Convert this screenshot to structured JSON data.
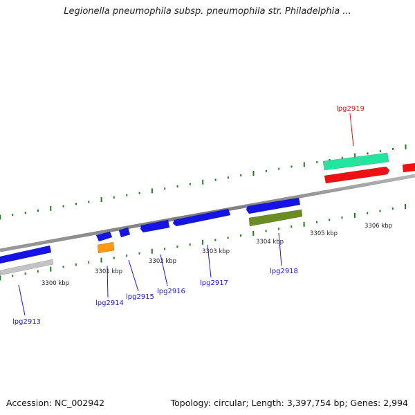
{
  "header": {
    "title": "Legionella pneumophila subsp. pneumophila str. Philadelphia ..."
  },
  "footer": {
    "accession": "Accession: NC_002942",
    "summary": "Topology: circular; Length: 3,397,754 bp; Genes: 2,994"
  },
  "colors": {
    "backbone": "#8c8c8c",
    "tick": "#1f7a1f",
    "label_default": "#1a1acc",
    "label_highlight": "#dd1111",
    "gene_blue": "#1414e6",
    "gene_red": "#ee1111",
    "gene_aqua": "#22e6a0",
    "gene_orange": "#ff9911",
    "gene_olive": "#6b8c22",
    "gene_gray": "#c4c4c4"
  },
  "scale_labels": [
    "3300 kbp",
    "3301 kbp",
    "3302 kbp",
    "3303 kbp",
    "3304 kbp",
    "3305 kbp",
    "3306 kbp"
  ],
  "genes": [
    {
      "label": "lpg2913",
      "color": "blue",
      "emphasis": false
    },
    {
      "label": "lpg2914",
      "color": "orange",
      "emphasis": false
    },
    {
      "label": "lpg2915",
      "color": "blue",
      "emphasis": false
    },
    {
      "label": "lpg2916",
      "color": "blue",
      "emphasis": false
    },
    {
      "label": "lpg2917",
      "color": "blue",
      "emphasis": false
    },
    {
      "label": "lpg2918",
      "color": "olive",
      "emphasis": false
    },
    {
      "label": "lpg2919",
      "color": "aqua",
      "emphasis": true
    }
  ]
}
